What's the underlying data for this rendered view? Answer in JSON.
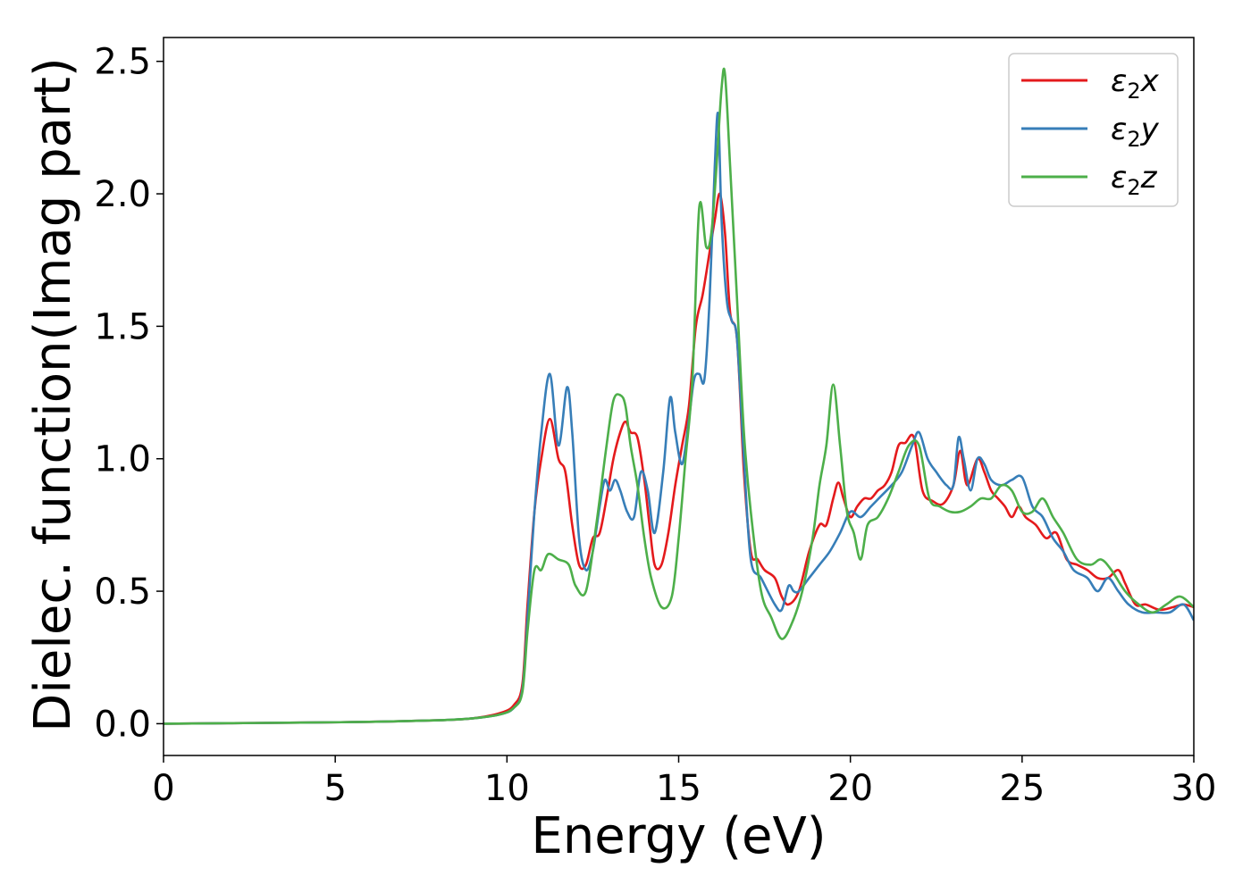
{
  "chart_data": {
    "type": "line",
    "title": "",
    "xlabel": "Energy (eV)",
    "ylabel": "Dielec. function(Imag part)",
    "xlim": [
      0,
      30
    ],
    "ylim": [
      -0.12,
      2.59
    ],
    "xticks": [
      0,
      5,
      10,
      15,
      20,
      25,
      30
    ],
    "yticks": [
      0.0,
      0.5,
      1.0,
      1.5,
      2.0,
      2.5
    ],
    "xtick_labels": [
      "0",
      "5",
      "10",
      "15",
      "20",
      "25",
      "30"
    ],
    "ytick_labels": [
      "0.0",
      "0.5",
      "1.0",
      "1.5",
      "2.0",
      "2.5"
    ],
    "grid": false,
    "legend_position": "top-right",
    "series": [
      {
        "name": "ε2x",
        "label_base": "ε",
        "label_sub": "2",
        "label_var": "x",
        "color": "#e41a1c",
        "x": [
          0,
          2,
          4,
          6,
          8,
          9,
          9.8,
          10.2,
          10.45,
          10.6,
          10.8,
          11,
          11.25,
          11.5,
          11.7,
          11.9,
          12.1,
          12.3,
          12.5,
          12.7,
          12.9,
          13.1,
          13.3,
          13.45,
          13.6,
          13.8,
          14,
          14.15,
          14.3,
          14.5,
          14.7,
          14.9,
          15.1,
          15.3,
          15.5,
          15.7,
          15.9,
          16.05,
          16.2,
          16.35,
          16.5,
          16.7,
          16.9,
          17.1,
          17.3,
          17.5,
          17.8,
          18,
          18.2,
          18.5,
          18.8,
          19.1,
          19.3,
          19.5,
          19.65,
          19.8,
          20,
          20.2,
          20.4,
          20.6,
          20.8,
          21,
          21.2,
          21.4,
          21.6,
          21.85,
          22.1,
          22.4,
          22.7,
          23,
          23.2,
          23.4,
          23.7,
          23.9,
          24.1,
          24.3,
          24.5,
          24.7,
          24.9,
          25.1,
          25.4,
          25.7,
          26,
          26.3,
          26.6,
          26.9,
          27.2,
          27.5,
          27.8,
          28,
          28.3,
          28.6,
          29,
          29.4,
          29.7,
          30
        ],
        "y": [
          0.0,
          0.002,
          0.004,
          0.007,
          0.013,
          0.02,
          0.04,
          0.07,
          0.15,
          0.45,
          0.8,
          1.0,
          1.15,
          1.0,
          0.95,
          0.75,
          0.6,
          0.6,
          0.7,
          0.72,
          0.85,
          1.0,
          1.1,
          1.14,
          1.1,
          1.08,
          0.92,
          0.75,
          0.6,
          0.6,
          0.72,
          0.9,
          1.05,
          1.2,
          1.5,
          1.62,
          1.78,
          1.9,
          2.0,
          1.85,
          1.55,
          1.45,
          0.95,
          0.65,
          0.62,
          0.58,
          0.55,
          0.48,
          0.45,
          0.5,
          0.65,
          0.75,
          0.75,
          0.85,
          0.91,
          0.85,
          0.78,
          0.82,
          0.85,
          0.85,
          0.88,
          0.9,
          0.95,
          1.05,
          1.06,
          1.08,
          0.88,
          0.84,
          0.83,
          0.9,
          1.03,
          0.9,
          1.0,
          0.95,
          0.88,
          0.85,
          0.82,
          0.78,
          0.82,
          0.78,
          0.75,
          0.7,
          0.72,
          0.62,
          0.6,
          0.58,
          0.55,
          0.55,
          0.58,
          0.53,
          0.45,
          0.45,
          0.43,
          0.44,
          0.45,
          0.44
        ]
      },
      {
        "name": "ε2y",
        "label_base": "ε",
        "label_sub": "2",
        "label_var": "y",
        "color": "#377eb8",
        "x": [
          0,
          2,
          4,
          6,
          8,
          9,
          9.8,
          10.2,
          10.45,
          10.6,
          10.8,
          11,
          11.25,
          11.5,
          11.75,
          11.9,
          12.1,
          12.3,
          12.5,
          12.7,
          12.85,
          13,
          13.15,
          13.3,
          13.5,
          13.7,
          13.9,
          14.1,
          14.3,
          14.55,
          14.75,
          14.9,
          15.1,
          15.3,
          15.45,
          15.6,
          15.75,
          15.9,
          16.05,
          16.15,
          16.25,
          16.4,
          16.55,
          16.7,
          16.9,
          17.1,
          17.4,
          17.8,
          18,
          18.2,
          18.35,
          18.5,
          18.8,
          19.1,
          19.4,
          19.7,
          20,
          20.3,
          20.6,
          20.9,
          21.2,
          21.5,
          21.8,
          22,
          22.25,
          22.5,
          22.8,
          23,
          23.15,
          23.3,
          23.5,
          23.7,
          23.9,
          24.1,
          24.4,
          24.7,
          25,
          25.3,
          25.6,
          25.9,
          26.2,
          26.5,
          26.9,
          27.2,
          27.5,
          27.8,
          28.1,
          28.5,
          28.9,
          29.3,
          29.7,
          30
        ],
        "y": [
          0.0,
          0.002,
          0.004,
          0.007,
          0.013,
          0.02,
          0.035,
          0.06,
          0.13,
          0.4,
          0.8,
          1.1,
          1.32,
          1.05,
          1.27,
          1.1,
          0.7,
          0.58,
          0.65,
          0.82,
          0.92,
          0.88,
          0.92,
          0.88,
          0.8,
          0.78,
          0.95,
          0.88,
          0.72,
          0.95,
          1.23,
          1.1,
          0.98,
          1.15,
          1.3,
          1.32,
          1.3,
          1.6,
          2.1,
          2.3,
          1.9,
          1.6,
          1.52,
          1.45,
          1.0,
          0.62,
          0.55,
          0.45,
          0.43,
          0.52,
          0.5,
          0.5,
          0.55,
          0.6,
          0.65,
          0.72,
          0.8,
          0.78,
          0.82,
          0.86,
          0.9,
          0.95,
          1.05,
          1.1,
          1.0,
          0.95,
          0.9,
          0.9,
          1.08,
          1.0,
          0.88,
          1.0,
          0.98,
          0.92,
          0.9,
          0.92,
          0.93,
          0.82,
          0.78,
          0.7,
          0.65,
          0.58,
          0.55,
          0.5,
          0.55,
          0.5,
          0.45,
          0.42,
          0.42,
          0.42,
          0.45,
          0.39
        ]
      },
      {
        "name": "ε2z",
        "label_base": "ε",
        "label_sub": "2",
        "label_var": "z",
        "color": "#4daf4a",
        "x": [
          0,
          2,
          4,
          6,
          8,
          9,
          9.8,
          10.2,
          10.45,
          10.6,
          10.8,
          11,
          11.2,
          11.5,
          11.8,
          12,
          12.3,
          12.6,
          12.9,
          13.1,
          13.3,
          13.45,
          13.6,
          13.8,
          14,
          14.2,
          14.5,
          14.8,
          15,
          15.2,
          15.4,
          15.6,
          15.8,
          15.95,
          16.1,
          16.25,
          16.35,
          16.5,
          16.7,
          16.9,
          17.1,
          17.4,
          17.7,
          18,
          18.3,
          18.6,
          18.9,
          19.1,
          19.3,
          19.5,
          19.7,
          19.9,
          20.1,
          20.3,
          20.5,
          20.8,
          21.1,
          21.4,
          21.7,
          22,
          22.3,
          22.6,
          22.9,
          23.2,
          23.5,
          23.8,
          24.1,
          24.4,
          24.7,
          25,
          25.3,
          25.6,
          25.9,
          26.2,
          26.6,
          27,
          27.3,
          27.6,
          28,
          28.4,
          28.8,
          29.2,
          29.6,
          30
        ],
        "y": [
          0.0,
          0.002,
          0.004,
          0.007,
          0.013,
          0.02,
          0.035,
          0.06,
          0.12,
          0.35,
          0.58,
          0.58,
          0.64,
          0.62,
          0.6,
          0.52,
          0.5,
          0.75,
          1.05,
          1.22,
          1.24,
          1.2,
          1.05,
          0.9,
          0.7,
          0.55,
          0.44,
          0.48,
          0.7,
          1.0,
          1.3,
          1.95,
          1.8,
          1.85,
          2.1,
          2.4,
          2.45,
          2.1,
          1.6,
          1.1,
          0.8,
          0.5,
          0.4,
          0.32,
          0.38,
          0.5,
          0.7,
          0.9,
          1.05,
          1.28,
          1.05,
          0.8,
          0.72,
          0.62,
          0.75,
          0.78,
          0.85,
          0.95,
          1.05,
          1.05,
          0.85,
          0.82,
          0.8,
          0.8,
          0.82,
          0.85,
          0.85,
          0.9,
          0.88,
          0.8,
          0.8,
          0.85,
          0.78,
          0.72,
          0.62,
          0.6,
          0.62,
          0.58,
          0.5,
          0.45,
          0.42,
          0.45,
          0.48,
          0.44
        ]
      }
    ]
  }
}
